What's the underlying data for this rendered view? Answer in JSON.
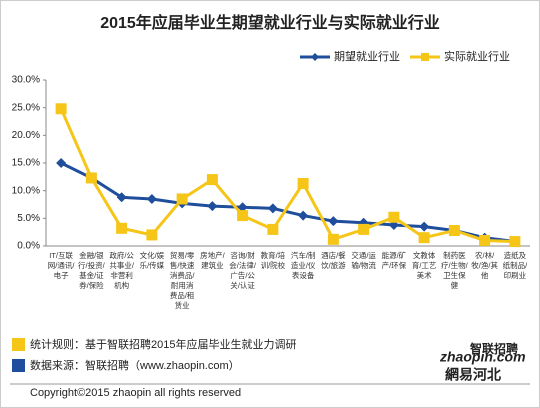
{
  "chart_data": {
    "type": "line",
    "title": "2015年应届毕业生期望就业行业与实际就业行业",
    "categories": [
      "IT/互联网/通讯/电子",
      "金融/银行/投资/基金/证券/保险",
      "政府/公共事业/非营利机构",
      "文化/娱乐/传媒",
      "贸易/零售/快速消费品/耐用消费品/租赁业",
      "房地产/建筑业",
      "咨询/财会/法律/广告/公关/认证",
      "教育/培训/院校",
      "汽车/制造业/仪表设备",
      "酒店/餐饮/旅游",
      "交通/运输/物流",
      "能源/矿产/环保",
      "文教体育/工艺美术",
      "制药医疗/生物/卫生保健",
      "农/林/牧/渔/其他",
      "造纸及纸制品/印刷业"
    ],
    "series": [
      {
        "name": "期望就业行业",
        "color": "#1f4e9c",
        "marker": "diamond",
        "values": [
          15.0,
          12.3,
          8.8,
          8.5,
          7.7,
          7.2,
          7.0,
          6.8,
          5.5,
          4.5,
          4.2,
          3.8,
          3.5,
          2.8,
          1.5,
          0.8
        ]
      },
      {
        "name": "实际就业行业",
        "color": "#f5c518",
        "marker": "square",
        "values": [
          24.8,
          12.3,
          3.2,
          2.0,
          8.5,
          12.0,
          5.5,
          3.0,
          11.3,
          1.2,
          3.0,
          5.2,
          1.5,
          2.8,
          1.0,
          0.8
        ]
      }
    ],
    "ylim": [
      0,
      30
    ],
    "yticks": [
      {
        "value": 0,
        "label": "0.0%"
      },
      {
        "value": 5,
        "label": "5.0%"
      },
      {
        "value": 10,
        "label": "10.0%"
      },
      {
        "value": 15,
        "label": "15.0%"
      },
      {
        "value": 20,
        "label": "20.0%"
      },
      {
        "value": 25,
        "label": "25.0%"
      },
      {
        "value": 30,
        "label": "30.0%"
      }
    ],
    "legend": "top-right",
    "footnotes": [
      "统计规则：基于智联招聘2015年应届毕业生就业力调研",
      "数据来源：智联招聘（www.zhaopin.com）"
    ],
    "copyright": "Copyright©2015 zhaopin all rights reserved",
    "logo": [
      "zhaopin.com",
      "智联招聘",
      "網易河北"
    ]
  }
}
